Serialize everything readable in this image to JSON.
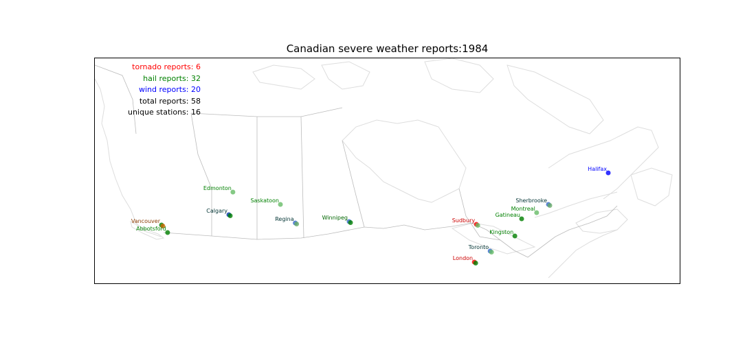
{
  "title": "Canadian severe weather reports:1984",
  "stats": {
    "tornado": "tornado reports: 6",
    "hail": "hail reports: 32",
    "wind": "wind reports: 20",
    "total": "total reports: 58",
    "stations": "unique stations: 16"
  },
  "colors": {
    "tornado": "#ff0000",
    "hail": "#008000",
    "wind": "#0000ff",
    "label_dark": "#003333",
    "coast": "#dddddd",
    "border": "#bbbbbb"
  },
  "stations": [
    {
      "name": "Vancouver",
      "label_color": "#8b3a00",
      "lat": 49.28,
      "lon": -123.12
    },
    {
      "name": "Abbotsford",
      "label_color": "#008000",
      "lat": 49.05,
      "lon": -122.3
    },
    {
      "name": "Edmonton",
      "label_color": "#008000",
      "lat": 53.55,
      "lon": -113.49
    },
    {
      "name": "Calgary",
      "label_color": "#003333",
      "lat": 51.05,
      "lon": -114.07
    },
    {
      "name": "Saskatoon",
      "label_color": "#008000",
      "lat": 52.13,
      "lon": -106.67
    },
    {
      "name": "Regina",
      "label_color": "#003333",
      "lat": 50.45,
      "lon": -104.61
    },
    {
      "name": "Winnipeg",
      "label_color": "#006600",
      "lat": 49.9,
      "lon": -97.14
    },
    {
      "name": "Sudbury",
      "label_color": "#cc0000",
      "lat": 46.49,
      "lon": -80.99
    },
    {
      "name": "London",
      "label_color": "#cc0000",
      "lat": 42.98,
      "lon": -81.25
    },
    {
      "name": "Toronto",
      "label_color": "#003333",
      "lat": 43.65,
      "lon": -79.38
    },
    {
      "name": "Kingston",
      "label_color": "#008000",
      "lat": 44.23,
      "lon": -76.49
    },
    {
      "name": "Gatineau",
      "label_color": "#008000",
      "lat": 45.48,
      "lon": -75.7
    },
    {
      "name": "Montreal",
      "label_color": "#008000",
      "lat": 45.5,
      "lon": -73.57
    },
    {
      "name": "Sherbrooke",
      "label_color": "#003333",
      "lat": 45.4,
      "lon": -71.89
    },
    {
      "name": "Halifax",
      "label_color": "#0000ff",
      "lat": 44.65,
      "lon": -63.57
    }
  ]
}
